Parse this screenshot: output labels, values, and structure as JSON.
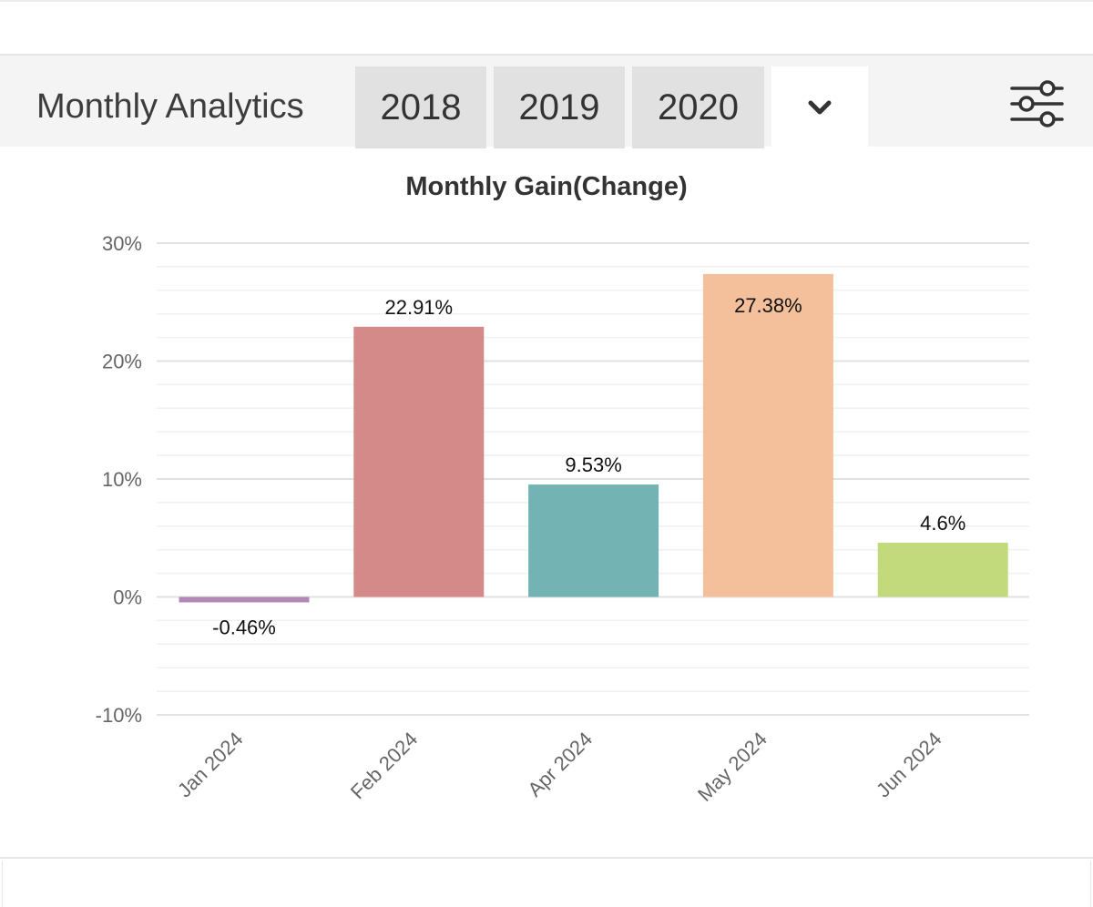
{
  "header": {
    "title": "Monthly Analytics",
    "year_tabs": [
      "2018",
      "2019",
      "2020"
    ],
    "dropdown_icon": "chevron-down-icon",
    "filter_icon": "sliders-icon"
  },
  "chart_data": {
    "type": "bar",
    "title": "Monthly Gain(Change)",
    "categories": [
      "Jan 2024",
      "Feb 2024",
      "Apr 2024",
      "May 2024",
      "Jun 2024"
    ],
    "values": [
      -0.46,
      22.91,
      9.53,
      27.38,
      4.6
    ],
    "data_labels": [
      "-0.46%",
      "22.91%",
      "9.53%",
      "27.38%",
      "4.6%"
    ],
    "colors": [
      "#b289b6",
      "#d48a88",
      "#73b3b3",
      "#f4c09c",
      "#c2d97c"
    ],
    "ylim": [
      -10,
      30
    ],
    "yticks": [
      -10,
      0,
      10,
      20,
      30
    ],
    "ytick_labels": [
      "-10%",
      "0%",
      "10%",
      "20%",
      "30%"
    ],
    "grid": true,
    "xlabel": "",
    "ylabel": ""
  }
}
